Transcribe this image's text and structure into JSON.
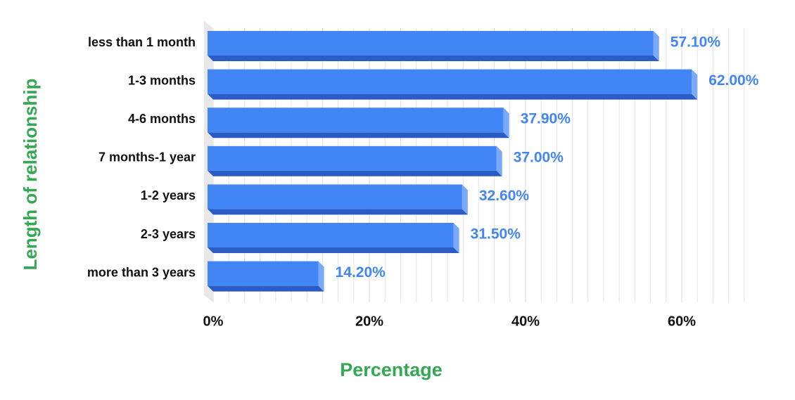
{
  "chart_data": {
    "type": "bar",
    "orientation": "horizontal",
    "x_label": "Percentage",
    "y_label": "Length of relationship",
    "categories": [
      "less than 1 month",
      "1-3 months",
      "4-6 months",
      "7 months-1 year",
      "1-2 years",
      "2-3 years",
      "more than 3 years"
    ],
    "values": [
      57.1,
      62.0,
      37.9,
      37.0,
      32.6,
      31.5,
      14.2
    ],
    "value_labels": [
      "57.10%",
      "62.00%",
      "37.90%",
      "37.00%",
      "32.60%",
      "31.50%",
      "14.20%"
    ],
    "color": "#4285f4",
    "xlim": [
      0,
      70
    ],
    "xticks": [
      {
        "value": 0,
        "label": "0%"
      },
      {
        "value": 20,
        "label": "20%"
      },
      {
        "value": 40,
        "label": "40%"
      },
      {
        "value": 60,
        "label": "60%"
      }
    ],
    "grid": true
  }
}
